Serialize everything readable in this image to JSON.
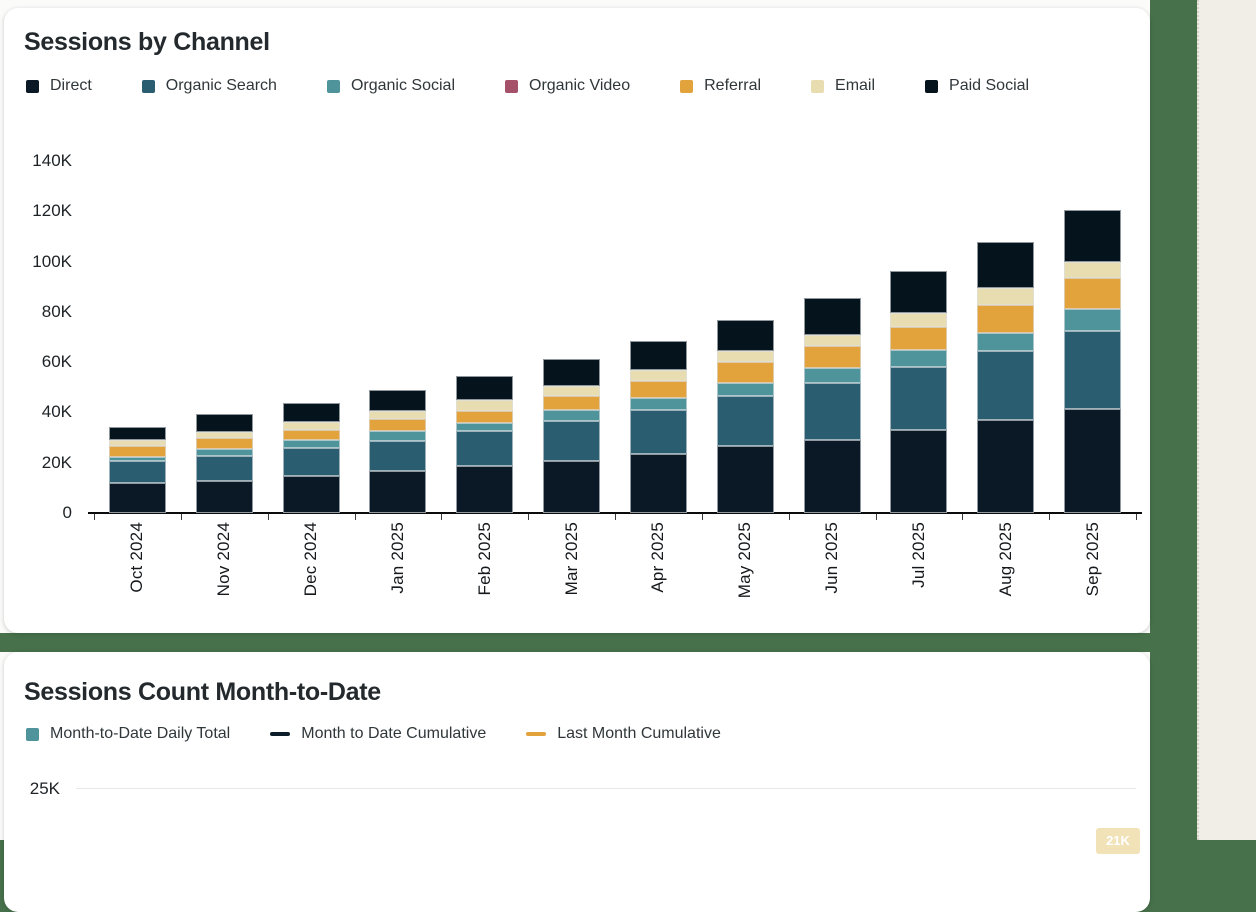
{
  "colors": {
    "page_background": "#47714b",
    "card_background": "#ffffff",
    "side_panel_background": "#f0eee7",
    "title_text": "#23292c",
    "legend_text": "#30373a",
    "axis_text": "#1c2226",
    "axis_line": "#0c0c0c",
    "gridline": "#e8e8e6",
    "badge_background": "#f1e2b8",
    "badge_text": "#ffffff"
  },
  "cards": [
    {
      "title": "Sessions by Channel"
    },
    {
      "title": "Sessions Count Month-to-Date"
    }
  ],
  "chart_data": [
    {
      "type": "bar",
      "stacked": true,
      "title": "Sessions by Channel",
      "legend_position": "top",
      "grid": false,
      "xlabel": "",
      "ylabel": "",
      "ylim": [
        0,
        140000
      ],
      "y_ticks": [
        {
          "label": "0",
          "value": 0
        },
        {
          "label": "20K",
          "value": 20000
        },
        {
          "label": "40K",
          "value": 40000
        },
        {
          "label": "60K",
          "value": 60000
        },
        {
          "label": "80K",
          "value": 80000
        },
        {
          "label": "100K",
          "value": 100000
        },
        {
          "label": "120K",
          "value": 120000
        },
        {
          "label": "140K",
          "value": 140000
        }
      ],
      "categories": [
        "Oct 2024",
        "Nov 2024",
        "Dec 2024",
        "Jan 2025",
        "Feb 2025",
        "Mar 2025",
        "Apr 2025",
        "May 2025",
        "Jun 2025",
        "Jul 2025",
        "Aug 2025",
        "Sep 2025"
      ],
      "series": [
        {
          "name": "Direct",
          "color": "#0a1925",
          "values": [
            11800,
            12800,
            14800,
            16800,
            18500,
            20800,
            23500,
            26500,
            29200,
            33100,
            37100,
            41500
          ]
        },
        {
          "name": "Organic Search",
          "color": "#2b5d71",
          "values": [
            8700,
            9700,
            11100,
            12000,
            14000,
            15700,
            17300,
            20000,
            22700,
            25000,
            27200,
            30800
          ]
        },
        {
          "name": "Organic Social",
          "color": "#4e949a",
          "values": [
            1900,
            3100,
            3000,
            3700,
            3400,
            4300,
            5100,
            5100,
            5600,
            6600,
            7400,
            8700
          ]
        },
        {
          "name": "Organic Video",
          "color": "#a55169",
          "values": [
            0,
            0,
            0,
            0,
            0,
            0,
            0,
            0,
            0,
            0,
            0,
            0
          ]
        },
        {
          "name": "Referral",
          "color": "#e2a23c",
          "values": [
            4200,
            4300,
            4300,
            5000,
            4600,
            5700,
            6600,
            8300,
            9000,
            9400,
            10900,
            12400
          ]
        },
        {
          "name": "Email",
          "color": "#e7ddb1",
          "values": [
            2300,
            2400,
            2900,
            3000,
            4400,
            4000,
            4300,
            4600,
            4400,
            5500,
            7000,
            6600
          ]
        },
        {
          "name": "Paid Social",
          "color": "#05131d",
          "values": [
            5500,
            6900,
            7800,
            8300,
            9600,
            10900,
            11500,
            12300,
            14600,
            16800,
            18200,
            20500
          ]
        }
      ]
    },
    {
      "type": "combo-bar-line",
      "title": "Sessions Count Month-to-Date",
      "legend_position": "top",
      "legend": [
        {
          "name": "Month-to-Date Daily Total",
          "marker": "square",
          "color": "#4e949a"
        },
        {
          "name": "Month to Date Cumulative",
          "marker": "line",
          "color": "#0c1e29"
        },
        {
          "name": "Last Month Cumulative",
          "marker": "line",
          "color": "#e2a23c"
        }
      ],
      "y_ticks": [
        {
          "label": "25K",
          "value": 25000
        }
      ],
      "partial_data_label": "21K"
    }
  ]
}
